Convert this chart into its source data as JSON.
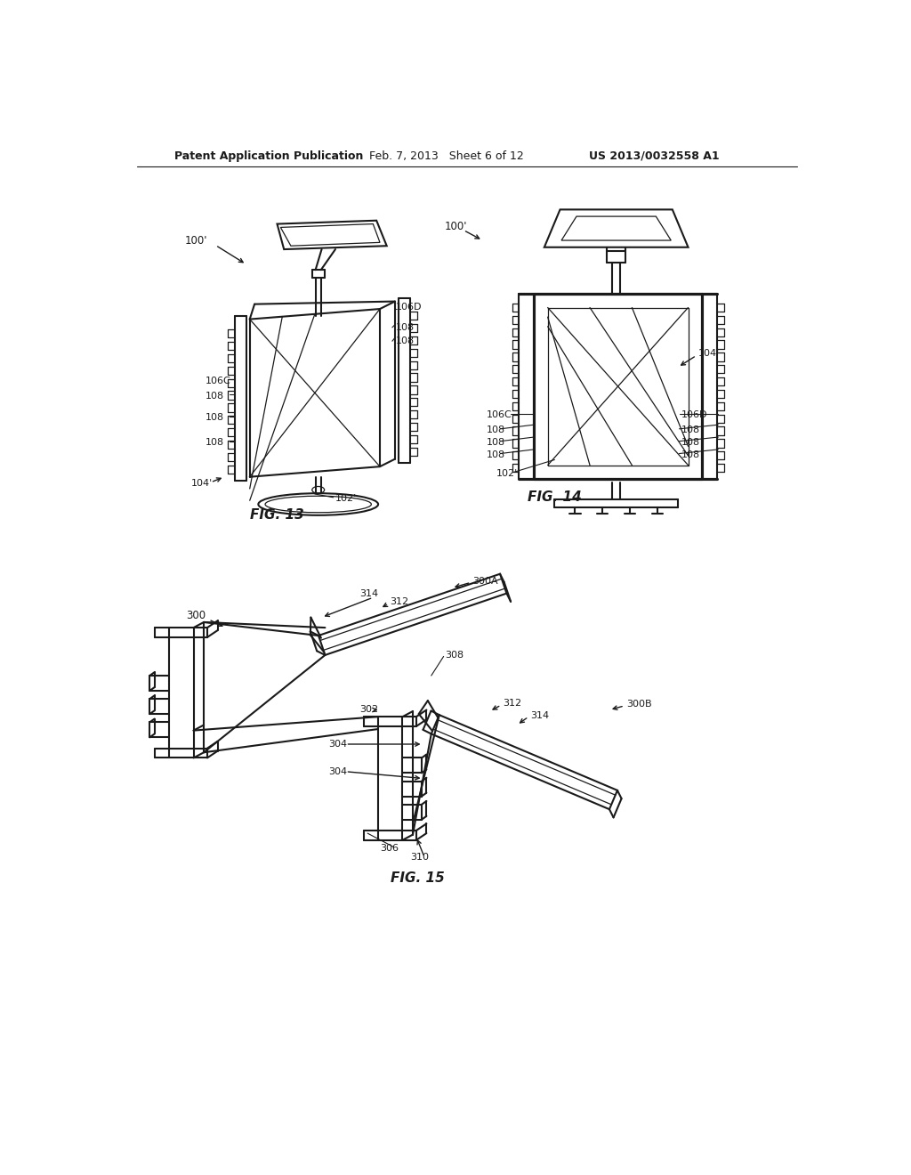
{
  "bg_color": "#ffffff",
  "line_color": "#1a1a1a",
  "header_left": "Patent Application Publication",
  "header_mid": "Feb. 7, 2013   Sheet 6 of 12",
  "header_right": "US 2013/0032558 A1",
  "fig13_label": "FIG. 13",
  "fig14_label": "FIG. 14",
  "fig15_label": "FIG. 15"
}
